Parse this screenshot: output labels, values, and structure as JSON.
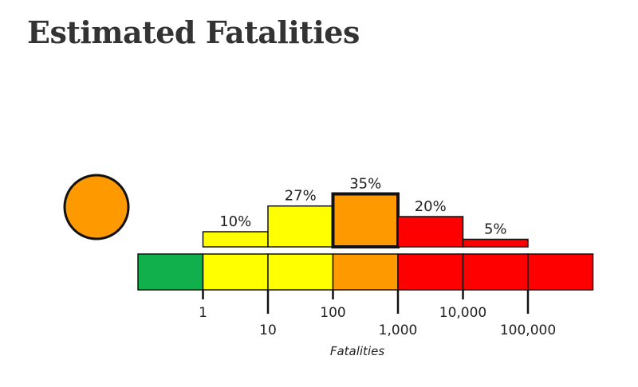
{
  "title": "Estimated Fatalities",
  "alert_color": "#ff9900",
  "colors": {
    "green": "#12b04c",
    "yellow": "#ffff00",
    "orange": "#ff9900",
    "red": "#ff0000"
  },
  "chart_data": {
    "type": "bar",
    "xlabel": "Fatalities",
    "ylabel": "",
    "x_scale": "log",
    "bins": [
      {
        "range": "1–10",
        "value": 10,
        "label": "10%",
        "color": "yellow",
        "highlighted": false
      },
      {
        "range": "10–100",
        "value": 27,
        "label": "27%",
        "color": "yellow",
        "highlighted": false
      },
      {
        "range": "100–1,000",
        "value": 35,
        "label": "35%",
        "color": "orange",
        "highlighted": true
      },
      {
        "range": "1,000–10,000",
        "value": 20,
        "label": "20%",
        "color": "red",
        "highlighted": false
      },
      {
        "range": "10,000–100,000",
        "value": 5,
        "label": "5%",
        "color": "red",
        "highlighted": false
      }
    ],
    "scale_band": [
      "green",
      "yellow",
      "yellow",
      "orange",
      "red",
      "red",
      "red"
    ],
    "ticks": [
      "1",
      "10",
      "100",
      "1,000",
      "10,000",
      "100,000"
    ]
  }
}
